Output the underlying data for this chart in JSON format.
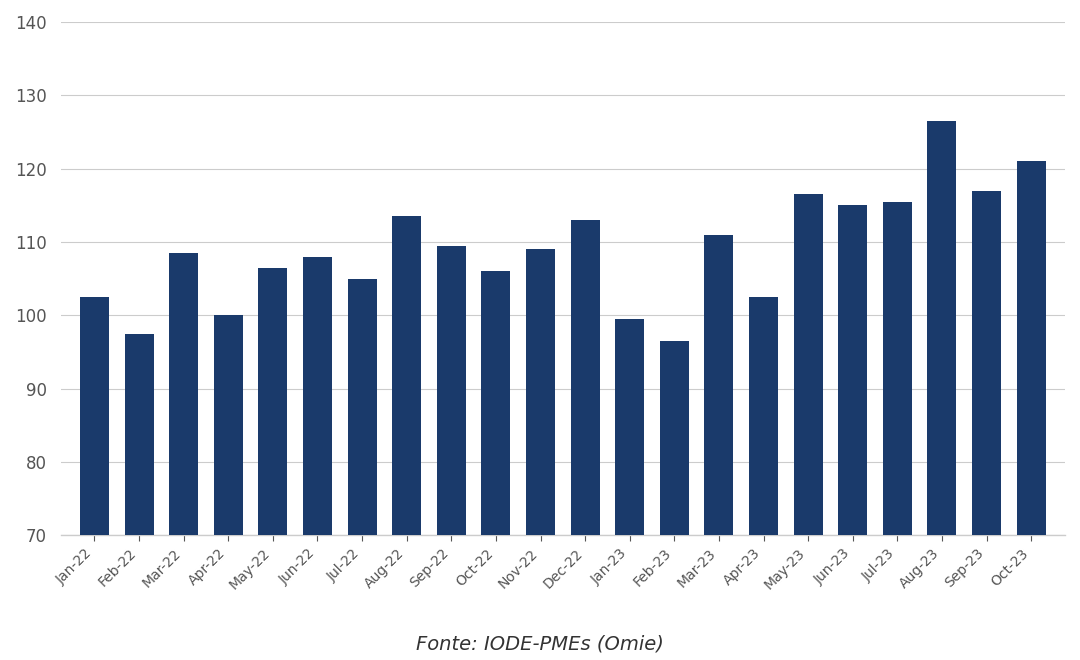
{
  "categories": [
    "Jan-22",
    "Feb-22",
    "Mar-22",
    "Apr-22",
    "May-22",
    "Jun-22",
    "Jul-22",
    "Aug-22",
    "Sep-22",
    "Oct-22",
    "Nov-22",
    "Dec-22",
    "Jan-23",
    "Feb-23",
    "Mar-23",
    "Apr-23",
    "May-23",
    "Jun-23",
    "Jul-23",
    "Aug-23",
    "Sep-23",
    "Oct-23"
  ],
  "values": [
    102.5,
    97.5,
    108.5,
    100.0,
    106.5,
    108.0,
    105.0,
    113.5,
    109.5,
    106.0,
    109.0,
    113.0,
    99.5,
    96.5,
    111.0,
    102.5,
    116.5,
    115.0,
    115.5,
    126.5,
    117.0,
    121.0
  ],
  "bar_color": "#1a3a6b",
  "background_color": "#ffffff",
  "ylim_min": 70,
  "ylim_max": 140,
  "yticks": [
    70,
    80,
    90,
    100,
    110,
    120,
    130,
    140
  ],
  "grid_color": "#cccccc",
  "tick_fontsize": 12,
  "xlabel_fontsize": 10,
  "footnote": "Fonte: IODE-PMEs (Omie)",
  "footnote_fontsize": 14,
  "bar_width": 0.65
}
